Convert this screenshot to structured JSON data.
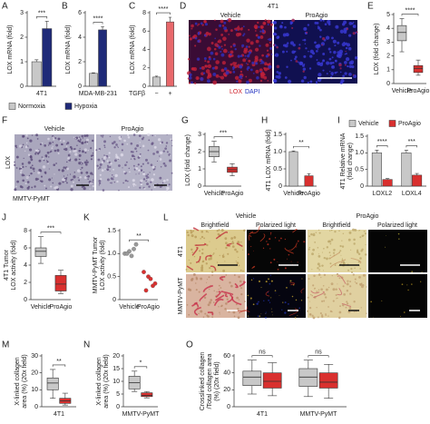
{
  "chart_data": [
    {
      "type": "bar",
      "panel": "A",
      "ylabel": "LOX mRNA (fold)",
      "categories": [
        "4T1"
      ],
      "series": [
        {
          "name": "Normoxia",
          "color": "#c8c8c8",
          "values": [
            1.0
          ],
          "errors": [
            0.08
          ]
        },
        {
          "name": "Hypoxia",
          "color": "#1f2a78",
          "values": [
            2.35
          ],
          "errors": [
            0.3
          ]
        }
      ],
      "ylim": [
        0,
        3
      ],
      "yticks": [
        0,
        1,
        2,
        3
      ],
      "significance": [
        "***"
      ],
      "legend": "below"
    },
    {
      "type": "bar",
      "panel": "B",
      "ylabel": "LOX mRNA (fold)",
      "categories": [
        "MDA-MB-231"
      ],
      "series": [
        {
          "color": "#c8c8c8",
          "values": [
            1.05
          ],
          "errors": [
            0.05
          ]
        },
        {
          "color": "#1f2a78",
          "values": [
            4.6
          ],
          "errors": [
            0.25
          ]
        }
      ],
      "ylim": [
        0,
        6
      ],
      "yticks": [
        0,
        2,
        4,
        6
      ],
      "significance": [
        "****"
      ]
    },
    {
      "type": "bar",
      "panel": "C",
      "ylabel": "LOX mRNA (fold)",
      "xlabel": "TGFβ",
      "categories": [
        "−",
        "+"
      ],
      "colors": [
        "#c8c8c8",
        "#e8686b"
      ],
      "values": [
        1.0,
        7.0
      ],
      "errors": [
        0.1,
        0.5
      ],
      "ylim": [
        0,
        8
      ],
      "yticks": [
        0,
        2,
        4,
        6,
        8
      ],
      "significance": [
        "****"
      ]
    },
    {
      "type": "box",
      "panel": "E",
      "ylabel": "LOX (fold change)",
      "categories": [
        "Vehicle",
        "ProAgio"
      ],
      "colors": [
        "#c8c8c8",
        "#d9302f"
      ],
      "boxes": [
        {
          "min": 2.3,
          "q1": 3.1,
          "median": 3.7,
          "q3": 4.2,
          "max": 4.7
        },
        {
          "min": 0.6,
          "q1": 0.8,
          "median": 1.1,
          "q3": 1.3,
          "max": 1.7
        }
      ],
      "ylim": [
        0,
        5
      ],
      "yticks": [
        0,
        1,
        2,
        3,
        4,
        5
      ],
      "significance": [
        "****"
      ]
    },
    {
      "type": "box",
      "panel": "G",
      "ylabel": "LOX (fold change)",
      "categories": [
        "Vehicle",
        "ProAgio"
      ],
      "colors": [
        "#c8c8c8",
        "#d9302f"
      ],
      "boxes": [
        {
          "min": 1.4,
          "q1": 1.7,
          "median": 2.0,
          "q3": 2.3,
          "max": 2.6
        },
        {
          "min": 0.6,
          "q1": 0.8,
          "median": 0.95,
          "q3": 1.1,
          "max": 1.3
        }
      ],
      "ylim": [
        0,
        3
      ],
      "yticks": [
        0,
        1,
        2,
        3
      ],
      "significance": [
        "***"
      ]
    },
    {
      "type": "bar",
      "panel": "H",
      "ylabel": "4T1 LOX mRNA (fold)",
      "categories": [
        "Vehicle",
        "ProAgio"
      ],
      "colors": [
        "#c8c8c8",
        "#d9302f"
      ],
      "values": [
        1.0,
        0.3
      ],
      "errors": [
        0.02,
        0.06
      ],
      "ylim": [
        0,
        1.5
      ],
      "yticks": [
        0,
        0.5,
        {
          "value": 1,
          "label": "1.0"
        },
        1.5
      ],
      "significance": [
        "**"
      ]
    },
    {
      "type": "bar",
      "panel": "I",
      "ylabel": [
        "4T1 Relative mRNA",
        "(fold change)"
      ],
      "categories": [
        "LOXL2",
        "LOXL4"
      ],
      "series": [
        {
          "name": "Vehicle",
          "color": "#c8c8c8",
          "values": [
            1.0,
            1.0
          ],
          "errors": [
            0.08,
            0.08
          ]
        },
        {
          "name": "ProAgio",
          "color": "#d9302f",
          "values": [
            0.2,
            0.33
          ],
          "errors": [
            0.03,
            0.05
          ]
        }
      ],
      "ylim": [
        0,
        1.5
      ],
      "yticks": [
        0,
        0.5,
        {
          "value": 1,
          "label": "1.0"
        },
        1.5
      ],
      "significance": [
        "****",
        "***"
      ],
      "legend": "top"
    },
    {
      "type": "box",
      "panel": "J",
      "ylabel": [
        "4T1 Tumor",
        "LOX activity (fold)"
      ],
      "categories": [
        "Vehicle",
        "ProAgio"
      ],
      "colors": [
        "#c8c8c8",
        "#d9302f"
      ],
      "boxes": [
        {
          "min": 4.2,
          "q1": 5.0,
          "median": 5.6,
          "q3": 6.0,
          "max": 7.3
        },
        {
          "min": 0.7,
          "q1": 1.0,
          "median": 1.8,
          "q3": 2.8,
          "max": 3.4
        }
      ],
      "ylim": [
        0,
        8
      ],
      "yticks": [
        0,
        2,
        4,
        6,
        8
      ],
      "significance": [
        "***"
      ]
    },
    {
      "type": "strip",
      "panel": "K",
      "ylabel": [
        "MMTV-PyMT Tumor",
        "LOX activity (fold)"
      ],
      "categories": [
        "Vehicle",
        "ProAgio"
      ],
      "colors": [
        "#9a9a9a",
        "#d9302f"
      ],
      "points": [
        [
          1.0,
          1.05,
          1.1,
          1.0,
          0.95,
          1.2
        ],
        [
          0.6,
          0.5,
          0.3,
          0.2,
          0.45,
          0.35
        ]
      ],
      "ylim": [
        0,
        1.5
      ],
      "yticks": [
        0,
        0.5,
        {
          "value": 1,
          "label": "1.0"
        },
        1.5
      ],
      "significance": [
        "**"
      ]
    },
    {
      "type": "box",
      "panel": "M",
      "ylabel": [
        "X-linked collagen",
        "area (%) (20x field)"
      ],
      "categories": [
        "4T1"
      ],
      "series": [
        {
          "color": "#c8c8c8",
          "boxes": [
            {
              "min": 5,
              "q1": 10,
              "median": 14,
              "q3": 17,
              "max": 22
            }
          ]
        },
        {
          "color": "#d9302f",
          "boxes": [
            {
              "min": 1,
              "q1": 2,
              "median": 3.5,
              "q3": 5,
              "max": 8
            }
          ]
        }
      ],
      "ylim": [
        0,
        30
      ],
      "yticks": [
        0,
        10,
        20,
        30
      ],
      "significance": [
        "**"
      ]
    },
    {
      "type": "box",
      "panel": "N",
      "ylabel": [
        "X-linked collagen",
        "area (%) (20x field)"
      ],
      "categories": [
        "MMTV-PyMT"
      ],
      "series": [
        {
          "color": "#c8c8c8",
          "boxes": [
            {
              "min": 6,
              "q1": 7,
              "median": 9.5,
              "q3": 12,
              "max": 14
            }
          ]
        },
        {
          "color": "#d9302f",
          "boxes": [
            {
              "min": 3.5,
              "q1": 4,
              "median": 4.5,
              "q3": 5.5,
              "max": 6
            }
          ]
        }
      ],
      "ylim": [
        0,
        20
      ],
      "yticks": [
        0,
        5,
        10,
        15,
        20
      ],
      "significance": [
        "*"
      ]
    },
    {
      "type": "box",
      "panel": "O",
      "ylabel": [
        "Crosslinked collagen",
        "/Total collagen area",
        "(%) (20x field)"
      ],
      "categories": [
        "4T1",
        "MMTV-PyMT"
      ],
      "series": [
        {
          "color": "#c8c8c8",
          "boxes": [
            {
              "min": 15,
              "q1": 25,
              "median": 35,
              "q3": 42,
              "max": 55
            },
            {
              "min": 12,
              "q1": 24,
              "median": 35,
              "q3": 45,
              "max": 55
            }
          ]
        },
        {
          "color": "#d9302f",
          "boxes": [
            {
              "min": 13,
              "q1": 22,
              "median": 30,
              "q3": 40,
              "max": 52
            },
            {
              "min": 10,
              "q1": 22,
              "median": 29,
              "q3": 40,
              "max": 50
            }
          ]
        }
      ],
      "ylim": [
        0,
        60
      ],
      "yticks": [
        0,
        20,
        40,
        60
      ],
      "significance": [
        "ns",
        "ns"
      ]
    }
  ],
  "images": [
    {
      "panel": "D",
      "title": "4T1",
      "columns": [
        "Vehicle",
        "ProAgio"
      ],
      "stain": [
        "LOX",
        "DAPI"
      ]
    },
    {
      "panel": "F",
      "ylabel": "LOX",
      "columns": [
        "Vehicle",
        "ProAgio"
      ],
      "caption": "MMTV-PyMT"
    },
    {
      "panel": "L",
      "groups": [
        "Vehicle",
        "ProAgio"
      ],
      "columns": [
        "Brightfield",
        "Polarized light",
        "Brightfield",
        "Polarized light"
      ],
      "rows": [
        "4T1",
        "MMTV-PyMT"
      ]
    }
  ]
}
